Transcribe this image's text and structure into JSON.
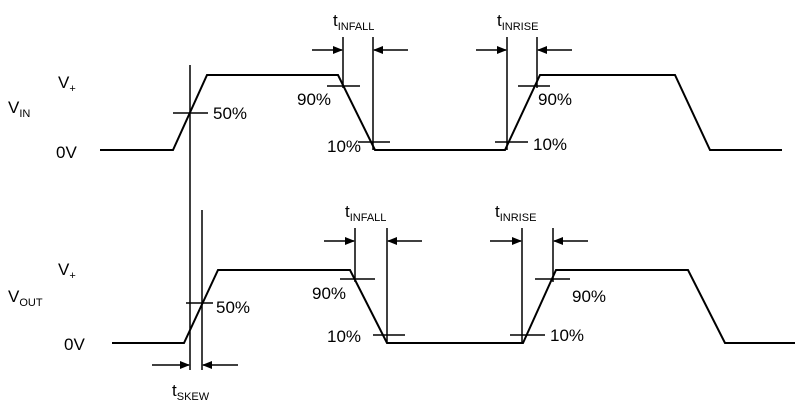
{
  "input": {
    "signal_label": "V",
    "signal_sub": "IN",
    "high_label": "V",
    "high_sub": "+",
    "low_label": "0V",
    "mid_pct": "50%",
    "fall_high_pct": "90%",
    "fall_low_pct": "10%",
    "rise_low_pct": "10%",
    "rise_high_pct": "90%",
    "tfall_label": "t",
    "tfall_sub": "INFALL",
    "trise_label": "t",
    "trise_sub": "INRISE"
  },
  "output": {
    "signal_label": "V",
    "signal_sub": "OUT",
    "high_label": "V",
    "high_sub": "+",
    "low_label": "0V",
    "mid_pct": "50%",
    "fall_high_pct": "90%",
    "fall_low_pct": "10%",
    "rise_low_pct": "10%",
    "rise_high_pct": "90%",
    "tfall_label": "t",
    "tfall_sub": "INFALL",
    "trise_label": "t",
    "trise_sub": "INRISE"
  },
  "skew": {
    "label": "t",
    "sub": "SKEW"
  }
}
